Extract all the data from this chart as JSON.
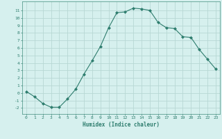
{
  "x": [
    0,
    1,
    2,
    3,
    4,
    5,
    6,
    7,
    8,
    9,
    10,
    11,
    12,
    13,
    14,
    15,
    16,
    17,
    18,
    19,
    20,
    21,
    22,
    23
  ],
  "y": [
    0.2,
    -0.5,
    -1.4,
    -1.9,
    -1.9,
    -0.8,
    0.5,
    2.5,
    4.3,
    6.2,
    8.7,
    10.7,
    10.8,
    11.3,
    11.2,
    11.0,
    9.4,
    8.7,
    8.6,
    7.5,
    7.4,
    5.8,
    4.5,
    3.2
  ],
  "title": "",
  "xlabel": "Humidex (Indice chaleur)",
  "ylabel": "",
  "xlim": [
    -0.5,
    23.5
  ],
  "ylim": [
    -2.8,
    12.2
  ],
  "yticks": [
    -2,
    -1,
    0,
    1,
    2,
    3,
    4,
    5,
    6,
    7,
    8,
    9,
    10,
    11
  ],
  "xticks": [
    0,
    1,
    2,
    3,
    4,
    5,
    6,
    7,
    8,
    9,
    10,
    11,
    12,
    13,
    14,
    15,
    16,
    17,
    18,
    19,
    20,
    21,
    22,
    23
  ],
  "line_color": "#2e7d6e",
  "marker": "D",
  "marker_size": 2.0,
  "bg_color": "#d6f0ee",
  "grid_color": "#b8d8d4",
  "spine_color": "#5a9e90",
  "tick_color": "#2e7d6e",
  "label_color": "#2e7d6e"
}
